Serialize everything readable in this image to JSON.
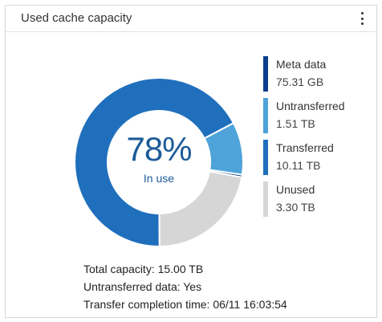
{
  "panel": {
    "title": "Used cache capacity",
    "menu_icon": "kebab-menu-icon"
  },
  "chart_data": {
    "type": "pie",
    "center_value": "78%",
    "center_label": "In use",
    "slices": [
      {
        "name": "Meta data",
        "value_text": "75.31 GB",
        "value": 0.07354,
        "unit": "TB",
        "color": "#0b3d8c"
      },
      {
        "name": "Untransferred",
        "value_text": "1.51 TB",
        "value": 1.51,
        "unit": "TB",
        "color": "#4ea3d9"
      },
      {
        "name": "Transferred",
        "value_text": "10.11 TB",
        "value": 10.11,
        "unit": "TB",
        "color": "#1f6fbd"
      },
      {
        "name": "Unused",
        "value_text": "3.30 TB",
        "value": 3.3,
        "unit": "TB",
        "color": "#d6d6d6"
      }
    ]
  },
  "info": {
    "total_capacity": "Total capacity: 15.00 TB",
    "untransferred_data": "Untransferred data: Yes",
    "transfer_completion": "Transfer completion time: 06/11 16:03:54"
  }
}
